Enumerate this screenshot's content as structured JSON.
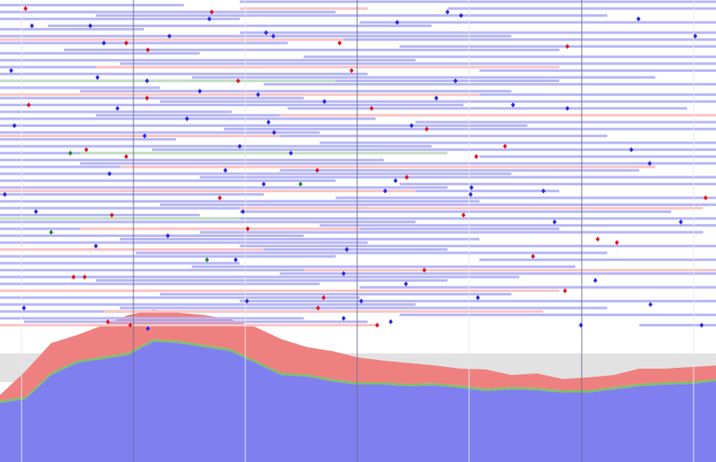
{
  "chart_data": [
    {
      "type": "timeline",
      "xlim": [
        0,
        896
      ],
      "ylim": [
        -0.5,
        95.5
      ],
      "xticks": [
        167,
        447,
        728
      ],
      "minor_xticks": [
        27,
        307,
        587,
        868
      ],
      "series": [
        {
          "color": "#b6b6f7",
          "intervals": [
            [
              0,
              300,
              896
            ],
            [
              1,
              0,
              230
            ],
            [
              2,
              560,
              896
            ],
            [
              3,
              0,
              420
            ],
            [
              4,
              120,
              760
            ],
            [
              5,
              0,
              300
            ],
            [
              6,
              450,
              896
            ],
            [
              7,
              60,
              540
            ],
            [
              8,
              0,
              180
            ],
            [
              9,
              300,
              896
            ],
            [
              10,
              0,
              640
            ],
            [
              11,
              200,
              896
            ],
            [
              12,
              0,
              360
            ],
            [
              13,
              500,
              896
            ],
            [
              14,
              80,
              700
            ],
            [
              15,
              0,
              250
            ],
            [
              16,
              380,
              896
            ],
            [
              17,
              0,
              520
            ],
            [
              18,
              150,
              896
            ],
            [
              19,
              0,
              330
            ],
            [
              20,
              600,
              896
            ],
            [
              21,
              0,
              460
            ],
            [
              22,
              240,
              820
            ],
            [
              23,
              0,
              700
            ],
            [
              24,
              330,
              896
            ],
            [
              25,
              0,
              200
            ],
            [
              26,
              100,
              640
            ],
            [
              27,
              450,
              896
            ],
            [
              28,
              0,
              380
            ],
            [
              29,
              200,
              896
            ],
            [
              30,
              0,
              580
            ],
            [
              31,
              360,
              860
            ],
            [
              32,
              0,
              290
            ],
            [
              33,
              120,
              896
            ],
            [
              34,
              0,
              470
            ],
            [
              35,
              520,
              896
            ],
            [
              36,
              0,
              660
            ],
            [
              37,
              280,
              896
            ],
            [
              38,
              0,
              400
            ],
            [
              39,
              150,
              760
            ],
            [
              40,
              0,
              220
            ],
            [
              41,
              400,
              896
            ],
            [
              42,
              0,
              540
            ],
            [
              43,
              190,
              896
            ],
            [
              44,
              0,
              350
            ],
            [
              45,
              600,
              896
            ],
            [
              46,
              0,
              480
            ],
            [
              47,
              100,
              896
            ],
            [
              48,
              0,
              300
            ],
            [
              49,
              350,
              800
            ],
            [
              50,
              0,
              640
            ],
            [
              51,
              250,
              896
            ],
            [
              52,
              0,
              420
            ],
            [
              53,
              500,
              896
            ],
            [
              54,
              0,
              560
            ],
            [
              55,
              150,
              700
            ],
            [
              56,
              0,
              330
            ],
            [
              57,
              420,
              896
            ],
            [
              58,
              0,
              600
            ],
            [
              59,
              200,
              896
            ],
            [
              60,
              0,
              460
            ],
            [
              61,
              300,
              840
            ],
            [
              62,
              0,
              250
            ],
            [
              63,
              130,
              896
            ],
            [
              64,
              0,
              520
            ],
            [
              65,
              400,
              896
            ],
            [
              66,
              0,
              700
            ],
            [
              67,
              250,
              880
            ],
            [
              68,
              0,
              380
            ],
            [
              69,
              150,
              600
            ],
            [
              70,
              0,
              460
            ],
            [
              71,
              300,
              896
            ],
            [
              72,
              0,
              560
            ],
            [
              73,
              170,
              760
            ],
            [
              74,
              0,
              420
            ],
            [
              75,
              600,
              896
            ],
            [
              76,
              0,
              300
            ],
            [
              77,
              240,
              720
            ],
            [
              78,
              0,
              500
            ],
            [
              79,
              350,
              896
            ],
            [
              80,
              0,
              650
            ],
            [
              81,
              120,
              560
            ],
            [
              82,
              0,
              400
            ],
            [
              83,
              450,
              896
            ],
            [
              84,
              0,
              300
            ],
            [
              85,
              200,
              640
            ],
            [
              86,
              0,
              450
            ],
            [
              87,
              300,
              896
            ],
            [
              88,
              0,
              520
            ],
            [
              89,
              150,
              760
            ],
            [
              90,
              0,
              420
            ],
            [
              91,
              500,
              896
            ],
            [
              92,
              0,
              380
            ],
            [
              93,
              30,
              460
            ],
            [
              94,
              800,
              896
            ]
          ],
          "event_color": "#2a2ae0",
          "events": [
            [
              40,
              7
            ],
            [
              113,
              7
            ],
            [
              130,
              12
            ],
            [
              212,
              10
            ],
            [
              262,
              5
            ],
            [
              333,
              9
            ],
            [
              342,
              10
            ],
            [
              497,
              6
            ],
            [
              560,
              3
            ],
            [
              577,
              4
            ],
            [
              799,
              5
            ],
            [
              870,
              10
            ],
            [
              14,
              20
            ],
            [
              122,
              22
            ],
            [
              184,
              23
            ],
            [
              250,
              26
            ],
            [
              323,
              27
            ],
            [
              406,
              29
            ],
            [
              546,
              28
            ],
            [
              570,
              23
            ],
            [
              642,
              30
            ],
            [
              710,
              31
            ],
            [
              147,
              31
            ],
            [
              234,
              34
            ],
            [
              336,
              35
            ],
            [
              343,
              38
            ],
            [
              515,
              36
            ],
            [
              18,
              36
            ],
            [
              181,
              39
            ],
            [
              300,
              42
            ],
            [
              364,
              44
            ],
            [
              790,
              43
            ],
            [
              813,
              47
            ],
            [
              137,
              50
            ],
            [
              282,
              49
            ],
            [
              330,
              53
            ],
            [
              495,
              52
            ],
            [
              6,
              56
            ],
            [
              482,
              55
            ],
            [
              589,
              56
            ],
            [
              680,
              55
            ],
            [
              45,
              61
            ],
            [
              304,
              61
            ],
            [
              210,
              68
            ],
            [
              434,
              72
            ],
            [
              590,
              54
            ],
            [
              694,
              64
            ],
            [
              852,
              64
            ],
            [
              120,
              71
            ],
            [
              295,
              75
            ],
            [
              430,
              79
            ],
            [
              508,
              82
            ],
            [
              745,
              81
            ],
            [
              598,
              86
            ],
            [
              309,
              87
            ],
            [
              452,
              87
            ],
            [
              814,
              88
            ],
            [
              30,
              89
            ],
            [
              430,
              92
            ],
            [
              727,
              94
            ],
            [
              878,
              94
            ],
            [
              185,
              95
            ],
            [
              489,
              93
            ]
          ]
        },
        {
          "color": "#f7c6c6",
          "intervals": [
            [
              2,
              300,
              460
            ],
            [
              11,
              0,
              430
            ],
            [
              19,
              120,
              700
            ],
            [
              27,
              0,
              600
            ],
            [
              33,
              350,
              896
            ],
            [
              39,
              0,
              350
            ],
            [
              48,
              150,
              820
            ],
            [
              55,
              0,
              520
            ],
            [
              60,
              300,
              880
            ],
            [
              66,
              100,
              450
            ],
            [
              72,
              0,
              330
            ],
            [
              78,
              380,
              896
            ],
            [
              84,
              0,
              700
            ],
            [
              90,
              130,
              680
            ],
            [
              94,
              0,
              470
            ]
          ],
          "event_color": "#e01818",
          "events": [
            [
              32,
              2
            ],
            [
              265,
              3
            ],
            [
              158,
              12
            ],
            [
              185,
              14
            ],
            [
              425,
              12
            ],
            [
              710,
              13
            ],
            [
              440,
              20
            ],
            [
              298,
              23
            ],
            [
              184,
              28
            ],
            [
              36,
              30
            ],
            [
              465,
              31
            ],
            [
              534,
              37
            ],
            [
              632,
              42
            ],
            [
              596,
              45
            ],
            [
              108,
              43
            ],
            [
              158,
              45
            ],
            [
              397,
              49
            ],
            [
              509,
              51
            ],
            [
              275,
              57
            ],
            [
              140,
              62
            ],
            [
              580,
              62
            ],
            [
              310,
              66
            ],
            [
              748,
              69
            ],
            [
              772,
              70
            ],
            [
              667,
              74
            ],
            [
              531,
              78
            ],
            [
              92,
              80
            ],
            [
              106,
              80
            ],
            [
              707,
              84
            ],
            [
              405,
              86
            ],
            [
              398,
              89
            ],
            [
              135,
              93
            ],
            [
              163,
              94
            ],
            [
              472,
              94
            ],
            [
              883,
              57
            ]
          ]
        },
        {
          "color": "#c2dec2",
          "intervals": [
            [
              23,
              0,
              420
            ],
            [
              44,
              100,
              560
            ],
            [
              63,
              0,
              300
            ]
          ],
          "event_color": "#1f8a1f",
          "events": [
            [
              88,
              44
            ],
            [
              376,
              53
            ],
            [
              64,
              67
            ],
            [
              259,
              75
            ]
          ]
        }
      ]
    },
    {
      "type": "area",
      "xlim": [
        0,
        896
      ],
      "ylim": [
        0,
        200
      ],
      "stacked": true,
      "x": [
        0,
        32,
        64,
        96,
        128,
        160,
        192,
        224,
        256,
        288,
        320,
        352,
        384,
        416,
        448,
        480,
        512,
        544,
        576,
        608,
        640,
        672,
        704,
        736,
        768,
        800,
        832,
        864,
        896
      ],
      "series": [
        {
          "color": "#7f7ff0",
          "values": [
            74,
            79,
            109,
            124,
            129,
            134,
            151,
            149,
            144,
            139,
            124,
            109,
            107,
            101,
            97,
            97,
            95,
            96,
            93,
            89,
            91,
            90,
            87,
            87,
            91,
            95,
            97,
            98,
            101
          ]
        },
        {
          "color": "#7fbf6a",
          "values": [
            3,
            3,
            3,
            3,
            3,
            3,
            3,
            3,
            3,
            3,
            3,
            3,
            3,
            3,
            3,
            3,
            3,
            3,
            3,
            3,
            3,
            3,
            3,
            3,
            3,
            3,
            3,
            3,
            3
          ]
        },
        {
          "color": "#ef8080",
          "values": [
            7,
            32,
            37,
            32,
            39,
            47,
            37,
            35,
            37,
            37,
            42,
            42,
            34,
            35,
            31,
            27,
            26,
            22,
            21,
            24,
            15,
            18,
            14,
            16,
            15,
            19,
            17,
            18,
            17
          ]
        }
      ]
    }
  ]
}
